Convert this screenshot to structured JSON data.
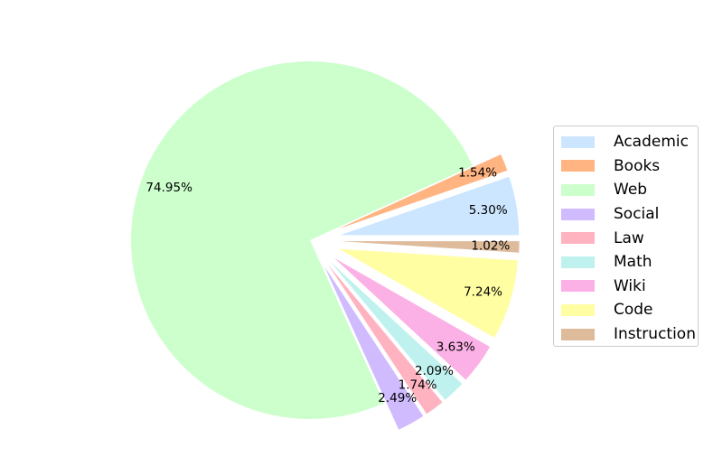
{
  "chart_data": {
    "type": "pie",
    "title": "",
    "start_angle_deg": 0,
    "direction": "counterclockwise",
    "legend_position": "right",
    "slices": [
      {
        "label": "Academic",
        "value": 5.3,
        "pct_label": "5.30%",
        "color": "#cce6ff",
        "exploded": true
      },
      {
        "label": "Books",
        "value": 1.54,
        "pct_label": "1.54%",
        "color": "#ffb482",
        "exploded": true
      },
      {
        "label": "Web",
        "value": 74.95,
        "pct_label": "74.95%",
        "color": "#ccffcc",
        "exploded": false
      },
      {
        "label": "Social",
        "value": 2.49,
        "pct_label": "2.49%",
        "color": "#d0bbff",
        "exploded": true
      },
      {
        "label": "Law",
        "value": 1.74,
        "pct_label": "1.74%",
        "color": "#ffb3c1",
        "exploded": true
      },
      {
        "label": "Math",
        "value": 2.09,
        "pct_label": "2.09%",
        "color": "#bff2ef",
        "exploded": true
      },
      {
        "label": "Wiki",
        "value": 3.63,
        "pct_label": "3.63%",
        "color": "#fbb0e6",
        "exploded": true
      },
      {
        "label": "Code",
        "value": 7.24,
        "pct_label": "7.24%",
        "color": "#fffea3",
        "exploded": true
      },
      {
        "label": "Instruction",
        "value": 1.02,
        "pct_label": "1.02%",
        "color": "#debb9b",
        "exploded": true
      }
    ]
  }
}
